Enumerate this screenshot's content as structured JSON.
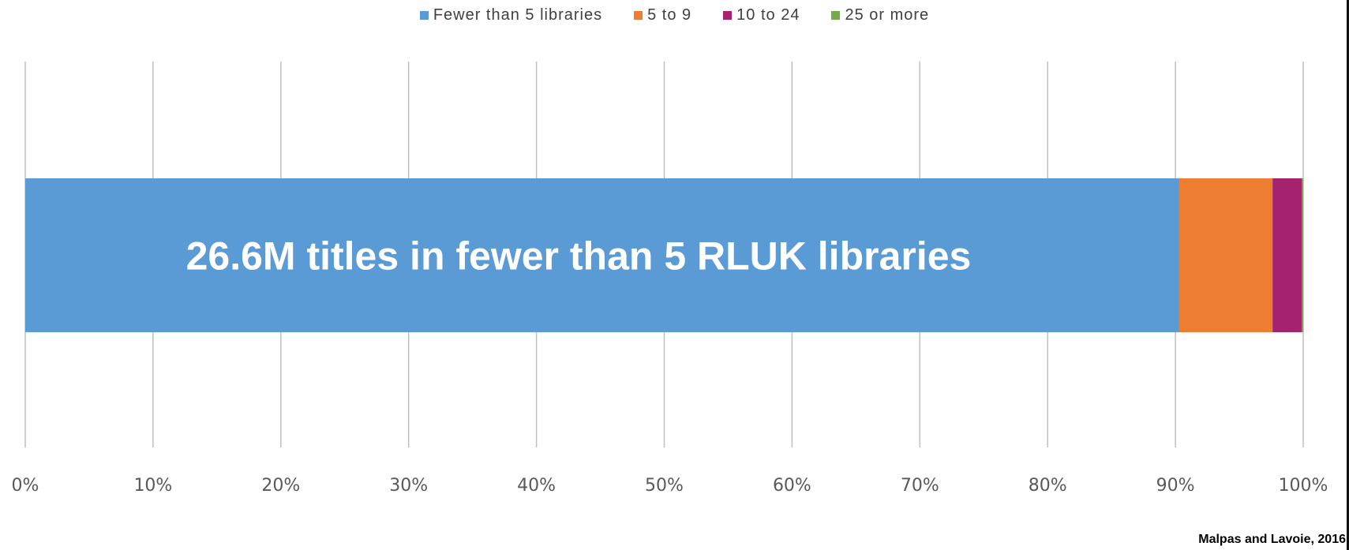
{
  "chart_data": {
    "type": "bar",
    "orientation": "horizontal",
    "stacked": "percent",
    "categories": [
      ""
    ],
    "series": [
      {
        "name": "Fewer than 5 libraries",
        "values": [
          90.3
        ],
        "color": "#5B9BD5"
      },
      {
        "name": "5 to 9",
        "values": [
          7.3
        ],
        "color": "#ED7D31"
      },
      {
        "name": "10 to 24",
        "values": [
          2.3
        ],
        "color": "#A5226F"
      },
      {
        "name": "25 or more",
        "values": [
          0.1
        ],
        "color": "#70AD47"
      }
    ],
    "bar_label": "26.6M titles in fewer than 5 RLUK libraries",
    "xlim": [
      0,
      100
    ],
    "xticks": [
      "0%",
      "10%",
      "20%",
      "30%",
      "40%",
      "50%",
      "60%",
      "70%",
      "80%",
      "90%",
      "100%"
    ],
    "grid": true,
    "legend_position": "top"
  },
  "source": "Malpas and Lavoie, 2016"
}
